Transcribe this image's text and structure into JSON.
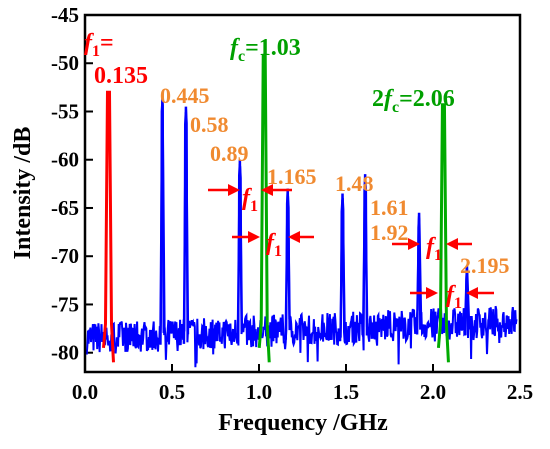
{
  "chart_data": {
    "type": "line",
    "title": "",
    "xlabel": "Frequency /GHz",
    "ylabel": "Intensity /dB",
    "xlim": [
      0.0,
      2.5
    ],
    "ylim": [
      -82,
      -45
    ],
    "xticks": [
      "0.0",
      "0.5",
      "1.0",
      "1.5",
      "2.0",
      "2.5"
    ],
    "yticks": [
      "-45",
      "-50",
      "-55",
      "-60",
      "-65",
      "-70",
      "-75",
      "-80"
    ],
    "grid": false,
    "colors": {
      "noise": "#0000ff",
      "f1": "#ff0000",
      "fc": "#00aa00",
      "label_orange": "#f08a30",
      "arrow": "#ff0000"
    },
    "series": [
      {
        "color": "#0000ff",
        "peaks": [
          {
            "x": 0.445,
            "y": -53.5
          },
          {
            "x": 0.58,
            "y": -54.5
          },
          {
            "x": 0.89,
            "y": -60.0
          },
          {
            "x": 1.165,
            "y": -63.0
          },
          {
            "x": 1.48,
            "y": -63.5
          },
          {
            "x": 1.61,
            "y": -61.5
          },
          {
            "x": 1.92,
            "y": -65.5
          },
          {
            "x": 2.195,
            "y": -71.0
          }
        ]
      },
      {
        "color": "#ff0000",
        "peaks": [
          {
            "x": 0.135,
            "y": -53.0
          }
        ]
      },
      {
        "color": "#00aa00",
        "peaks": [
          {
            "x": 1.03,
            "y": -49.3
          },
          {
            "x": 2.06,
            "y": -54.3
          }
        ]
      }
    ],
    "annotations": {
      "f1_symbol": "f",
      "f1_sub": "1",
      "f1_eq": "=",
      "f1_value": "0.135",
      "fc_symbol": "f",
      "fc_sub": "c",
      "fc_value": "=1.03",
      "two_fc_prefix": "2",
      "two_fc_symbol": "f",
      "two_fc_sub": "c",
      "two_fc_value": "=2.06",
      "peak_labels": [
        "0.445",
        "0.58",
        "0.89",
        "1.165",
        "1.48",
        "1.61",
        "1.92",
        "2.195"
      ],
      "spacing_symbol": "f",
      "spacing_sub": "1"
    }
  }
}
